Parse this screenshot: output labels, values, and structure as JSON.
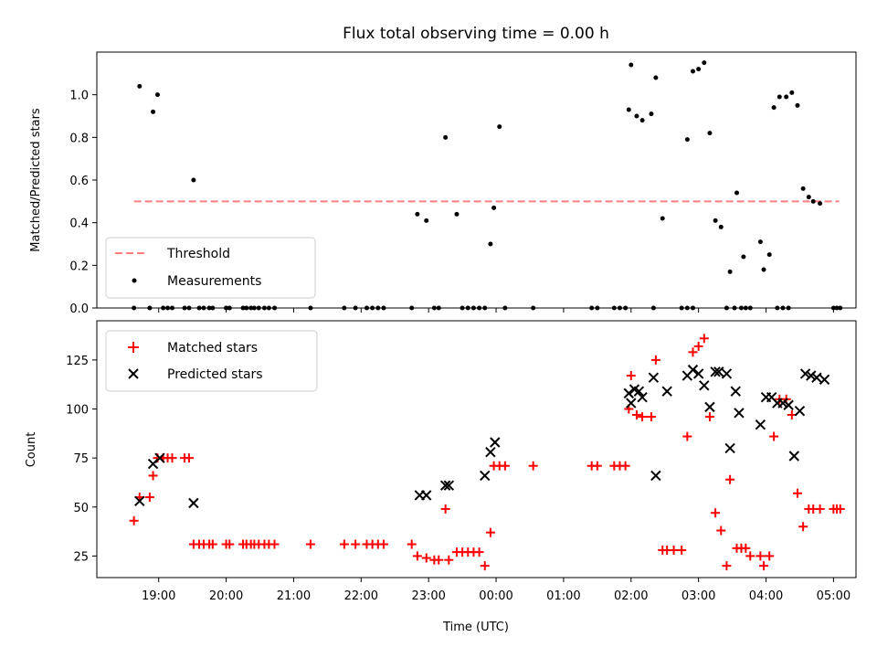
{
  "title": "Flux total observing time = 0.00 h",
  "xlabel": "Time (UTC)",
  "colors": {
    "threshold": "#ff7f7f",
    "measurements": "#000000",
    "matched": "#ff0000",
    "predicted": "#000000"
  },
  "chart_data": [
    {
      "type": "scatter",
      "title": "Flux total observing time = 0.00 h",
      "xlabel": "",
      "ylabel": "Matched/Predicted stars",
      "xlim": [
        "18:05",
        "05:20"
      ],
      "ylim": [
        0,
        1.2
      ],
      "yticks": [
        0.0,
        0.2,
        0.4,
        0.6,
        0.8,
        1.0
      ],
      "ytick_labels": [
        "0.0",
        "0.2",
        "0.4",
        "0.6",
        "0.8",
        "1.0"
      ],
      "xticks": [
        "19:00",
        "20:00",
        "21:00",
        "22:00",
        "23:00",
        "00:00",
        "01:00",
        "02:00",
        "03:00",
        "04:00",
        "05:00"
      ],
      "show_xtick_labels": false,
      "legend": {
        "position": "lower-left",
        "entries": [
          {
            "label": "Threshold",
            "marker": "dashed-line",
            "color": "#ff7f7f"
          },
          {
            "label": "Measurements",
            "marker": "dot",
            "color": "#000000"
          }
        ]
      },
      "series": [
        {
          "name": "Threshold",
          "style": "dashed-line",
          "x": [
            "18:38",
            "05:05"
          ],
          "y": [
            0.5,
            0.5
          ]
        },
        {
          "name": "Measurements",
          "style": "dot",
          "x": [
            "18:38",
            "18:43",
            "18:52",
            "18:55",
            "18:59",
            "19:04",
            "19:08",
            "19:12",
            "19:23",
            "19:27",
            "19:31",
            "19:36",
            "19:40",
            "19:45",
            "19:48",
            "20:00",
            "20:03",
            "20:15",
            "20:18",
            "20:22",
            "20:25",
            "20:29",
            "20:34",
            "20:38",
            "20:43",
            "21:15",
            "21:45",
            "21:55",
            "22:05",
            "22:10",
            "22:15",
            "22:20",
            "22:45",
            "22:50",
            "22:58",
            "23:05",
            "23:09",
            "23:15",
            "23:25",
            "23:30",
            "23:35",
            "23:40",
            "23:45",
            "23:50",
            "23:55",
            "23:58",
            "00:03",
            "00:08",
            "00:33",
            "01:25",
            "01:30",
            "01:45",
            "01:50",
            "01:55",
            "02:20",
            "02:45",
            "02:50",
            "02:55",
            "03:25",
            "03:32",
            "03:38",
            "03:42",
            "03:46",
            "04:10",
            "04:15",
            "04:20",
            "05:00",
            "05:03",
            "05:06"
          ],
          "y": [
            0,
            1.04,
            0,
            0.92,
            1.0,
            0,
            0,
            0,
            0,
            0,
            0.6,
            0,
            0,
            0,
            0,
            0,
            0,
            0,
            0,
            0,
            0,
            0,
            0,
            0,
            0,
            0,
            0,
            0,
            0,
            0,
            0,
            0,
            0,
            0.44,
            0.41,
            0,
            0,
            0.8,
            0.44,
            0,
            0,
            0,
            0,
            0,
            0.3,
            0.47,
            0.85,
            0,
            0,
            0,
            0,
            0,
            0,
            0,
            0,
            0,
            0,
            0,
            0,
            0,
            0,
            0,
            0,
            0,
            0,
            0,
            0,
            0,
            0
          ]
        },
        {
          "name": "Measurements",
          "style": "dot",
          "x": [
            "01:58",
            "02:00",
            "02:05",
            "02:10",
            "02:18",
            "02:22",
            "02:28",
            "02:50",
            "02:55",
            "03:00",
            "03:05",
            "03:10",
            "03:15",
            "03:20",
            "03:28",
            "03:34",
            "03:40",
            "03:55",
            "03:58",
            "04:03",
            "04:07",
            "04:12",
            "04:18",
            "04:23",
            "04:28",
            "04:33",
            "04:38",
            "04:42",
            "04:48"
          ],
          "y": [
            0.93,
            1.14,
            0.9,
            0.88,
            0.91,
            1.08,
            0.42,
            0.79,
            1.11,
            1.12,
            1.15,
            0.82,
            0.41,
            0.38,
            0.17,
            0.54,
            0.24,
            0.31,
            0.18,
            0.25,
            0.94,
            0.99,
            0.99,
            1.01,
            0.95,
            0.56,
            0.52,
            0.5,
            0.49
          ]
        }
      ]
    },
    {
      "type": "scatter",
      "title": "",
      "xlabel": "Time (UTC)",
      "ylabel": "Count",
      "xlim": [
        "18:05",
        "05:20"
      ],
      "ylim": [
        14,
        145
      ],
      "yticks": [
        25,
        50,
        75,
        100,
        125
      ],
      "ytick_labels": [
        "25",
        "50",
        "75",
        "100",
        "125"
      ],
      "xticks": [
        "19:00",
        "20:00",
        "21:00",
        "22:00",
        "23:00",
        "00:00",
        "01:00",
        "02:00",
        "03:00",
        "04:00",
        "05:00"
      ],
      "xtick_labels": [
        "19:00",
        "20:00",
        "21:00",
        "22:00",
        "23:00",
        "00:00",
        "01:00",
        "02:00",
        "03:00",
        "04:00",
        "05:00"
      ],
      "legend": {
        "position": "upper-left",
        "entries": [
          {
            "label": "Matched stars",
            "marker": "plus",
            "color": "#ff0000"
          },
          {
            "label": "Predicted stars",
            "marker": "x",
            "color": "#000000"
          }
        ]
      },
      "series": [
        {
          "name": "Matched stars",
          "style": "plus",
          "x": [
            "18:38",
            "18:43",
            "18:52",
            "18:55",
            "18:59",
            "19:04",
            "19:08",
            "19:12",
            "19:23",
            "19:27",
            "19:31",
            "19:36",
            "19:40",
            "19:45",
            "19:48",
            "20:00",
            "20:03",
            "20:15",
            "20:18",
            "20:22",
            "20:25",
            "20:29",
            "20:34",
            "20:38",
            "20:43",
            "21:15",
            "21:45",
            "21:55",
            "22:05",
            "22:10",
            "22:15",
            "22:20",
            "22:45",
            "22:50",
            "22:58",
            "23:05",
            "23:09",
            "23:15",
            "23:18",
            "23:25",
            "23:30",
            "23:35",
            "23:40",
            "23:45",
            "23:50",
            "23:55",
            "23:58",
            "00:03",
            "00:08",
            "00:33",
            "01:25",
            "01:30",
            "01:45",
            "01:50",
            "01:55",
            "01:58",
            "02:00",
            "02:05",
            "02:10",
            "02:18",
            "02:22",
            "02:28",
            "02:32",
            "02:38",
            "02:45",
            "02:50",
            "02:55",
            "03:00",
            "03:05",
            "03:10",
            "03:15",
            "03:20",
            "03:25",
            "03:28",
            "03:34",
            "03:38",
            "03:42",
            "03:46",
            "03:55",
            "03:58",
            "04:03",
            "04:07",
            "04:12",
            "04:18",
            "04:23",
            "04:28",
            "04:33",
            "04:38",
            "04:42",
            "04:48",
            "05:00",
            "05:03",
            "05:06"
          ],
          "y": [
            43,
            55,
            55,
            66,
            75,
            75,
            75,
            75,
            75,
            75,
            31,
            31,
            31,
            31,
            31,
            31,
            31,
            31,
            31,
            31,
            31,
            31,
            31,
            31,
            31,
            31,
            31,
            31,
            31,
            31,
            31,
            31,
            31,
            25,
            24,
            23,
            23,
            49,
            23,
            27,
            27,
            27,
            27,
            27,
            20,
            37,
            71,
            71,
            71,
            71,
            71,
            71,
            71,
            71,
            71,
            100,
            117,
            97,
            96,
            96,
            125,
            28,
            28,
            28,
            28,
            86,
            129,
            132,
            136,
            96,
            47,
            38,
            20,
            64,
            29,
            29,
            29,
            25,
            25,
            20,
            25,
            86,
            105,
            105,
            97,
            57,
            40,
            49,
            49,
            49,
            49,
            49,
            49
          ]
        },
        {
          "name": "Predicted stars",
          "style": "x",
          "x": [
            "18:43",
            "18:55",
            "19:01",
            "19:31",
            "22:52",
            "22:58",
            "23:15",
            "23:18",
            "23:50",
            "23:55",
            "23:59",
            "01:58",
            "02:00",
            "02:03",
            "02:07",
            "02:10",
            "02:20",
            "02:22",
            "02:32",
            "02:50",
            "02:55",
            "03:00",
            "03:05",
            "03:10",
            "03:15",
            "03:18",
            "03:25",
            "03:28",
            "03:33",
            "03:36",
            "03:55",
            "04:00",
            "04:05",
            "04:10",
            "04:15",
            "04:20",
            "04:25",
            "04:30",
            "04:35",
            "04:40",
            "04:45",
            "04:52"
          ],
          "y": [
            53,
            72,
            75,
            52,
            56,
            56,
            61,
            61,
            66,
            78,
            83,
            108,
            103,
            110,
            109,
            106,
            116,
            66,
            109,
            117,
            120,
            118,
            112,
            101,
            119,
            119,
            118,
            80,
            109,
            98,
            92,
            106,
            106,
            103,
            103,
            102,
            76,
            99,
            118,
            117,
            116,
            115
          ]
        }
      ]
    }
  ]
}
